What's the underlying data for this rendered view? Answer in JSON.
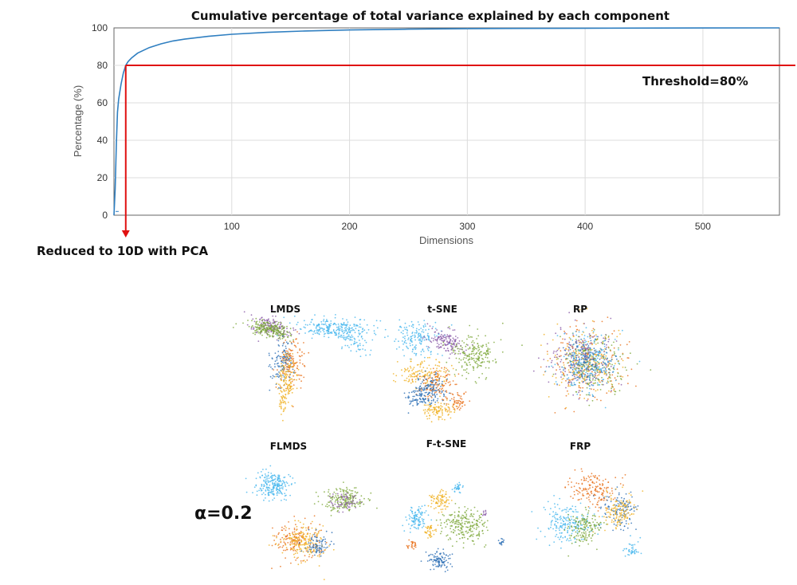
{
  "chart_data": [
    {
      "type": "line",
      "title": "Cumulative percentage of total variance explained by each component",
      "xlabel": "Dimensions",
      "ylabel": "Percentage (%)",
      "xlim": [
        0,
        565
      ],
      "ylim": [
        0,
        100
      ],
      "xticks": [
        "100",
        "200",
        "300",
        "400",
        "500"
      ],
      "yticks": [
        "0",
        "20",
        "40",
        "60",
        "80",
        "100"
      ],
      "grid": true,
      "line_color": "#2f7fc1",
      "threshold": {
        "y": 80,
        "label": "Threshold=80%",
        "color": "#e01010"
      },
      "reduction": {
        "x": 10,
        "label": "Reduced to 10D with PCA"
      },
      "series": [
        {
          "x": [
            1,
            2,
            3,
            4,
            5,
            6,
            8,
            10,
            12,
            15,
            20,
            25,
            30,
            40,
            50,
            60,
            80,
            100,
            130,
            160,
            200,
            250,
            300,
            400,
            500,
            565
          ],
          "values": [
            14,
            38,
            55,
            62,
            66,
            70,
            76,
            80,
            82,
            84,
            86.5,
            88,
            89.5,
            91.5,
            93,
            94,
            95.5,
            96.6,
            97.6,
            98.3,
            98.9,
            99.3,
            99.6,
            99.85,
            99.95,
            100
          ]
        }
      ]
    },
    {
      "type": "scatter",
      "layout": "grid",
      "row_label": "α=0.2",
      "cluster_colors": [
        "#46b6ee",
        "#8a5aa8",
        "#7da83a",
        "#e8701a",
        "#2d6fb5",
        "#f0b020"
      ],
      "panels": [
        {
          "title": "LMDS"
        },
        {
          "title": "t-SNE"
        },
        {
          "title": "RP"
        },
        {
          "title": "FLMDS"
        },
        {
          "title": "F-t-SNE"
        },
        {
          "title": "FRP"
        }
      ]
    }
  ]
}
